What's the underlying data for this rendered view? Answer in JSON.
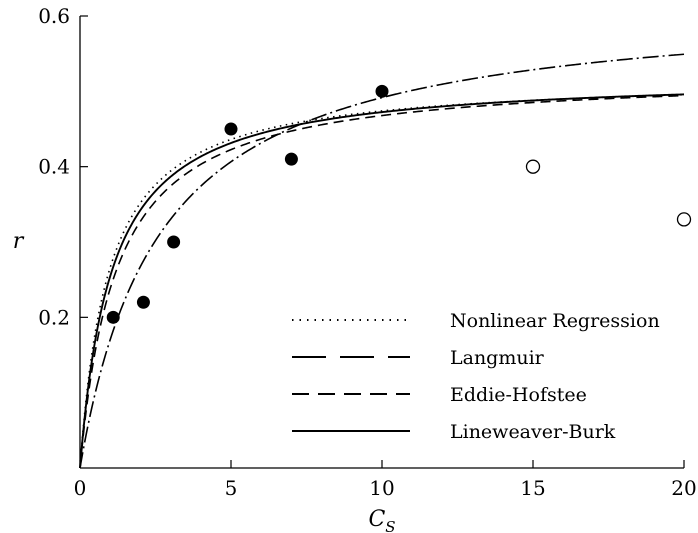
{
  "chart_data": {
    "type": "scatter",
    "title": "",
    "xlabel": "C",
    "xlabel_subscript": "S",
    "ylabel": "r",
    "xlim": [
      0,
      20
    ],
    "ylim": [
      0,
      0.6
    ],
    "x_ticks": [
      0,
      5,
      10,
      15,
      20
    ],
    "x_tick_labels": [
      "0",
      "5",
      "10",
      "15",
      "20"
    ],
    "y_ticks": [
      0.2,
      0.4,
      0.6
    ],
    "y_tick_labels": [
      "0.2",
      "0.4",
      "0.6"
    ],
    "grid": false,
    "legend_position": "bottom-right",
    "points_filled": {
      "x": [
        1.1,
        2.1,
        3.1,
        5.0,
        7.0,
        10.0
      ],
      "y": [
        0.2,
        0.22,
        0.3,
        0.45,
        0.41,
        0.5
      ]
    },
    "points_open": {
      "x": [
        15.0,
        20.0
      ],
      "y": [
        0.4,
        0.33
      ]
    },
    "series": [
      {
        "name": "Nonlinear Regression",
        "model": "michaelis-menten",
        "rmax": 0.519,
        "K": 0.95,
        "style": "dotted"
      },
      {
        "name": "Langmuir",
        "model": "michaelis-menten",
        "rmax": 0.622,
        "K": 2.65,
        "style": "long-dash-dot"
      },
      {
        "name": "Eddie-Hofstee",
        "model": "michaelis-menten",
        "rmax": 0.524,
        "K": 1.2,
        "style": "dashed"
      },
      {
        "name": "Lineweaver-Burk",
        "model": "michaelis-menten",
        "rmax": 0.522,
        "K": 1.05,
        "style": "solid"
      }
    ]
  }
}
